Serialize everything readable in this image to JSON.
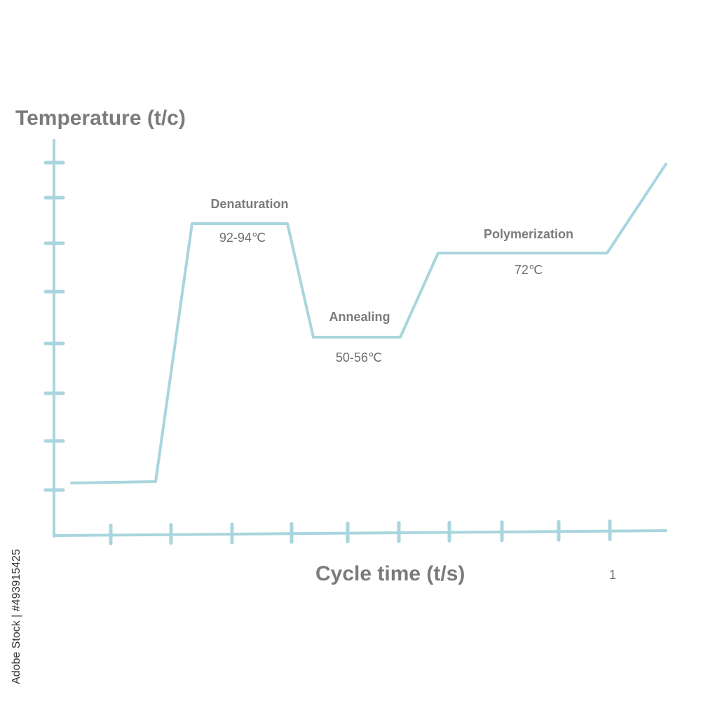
{
  "diagram": {
    "y_axis_label": "Temperature (t/c)",
    "x_axis_label": "Cycle time (t/s)",
    "cycle_label": "1",
    "phases": [
      {
        "name": "Denaturation",
        "temp": "92-94℃"
      },
      {
        "name": "Annealing",
        "temp": "50-56℃"
      },
      {
        "name": "Polymerization",
        "temp": "72℃"
      }
    ],
    "y_tick_count": 8,
    "x_tick_count": 10
  },
  "watermark": {
    "side_text": "Adobe Stock | #493915425"
  },
  "colors": {
    "curve": "#a9d5de",
    "axis": "#a9d5de",
    "label": "#7b7b7b"
  }
}
